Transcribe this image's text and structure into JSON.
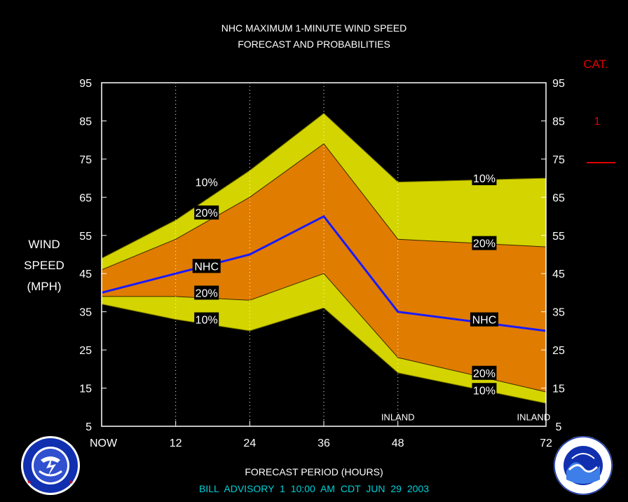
{
  "header": {
    "title_line1": "NHC MAXIMUM 1-MINUTE WIND SPEED",
    "title_line2": "FORECAST AND PROBABILITIES"
  },
  "y_axis_label": [
    "WIND",
    "SPEED",
    "(MPH)"
  ],
  "category": {
    "title": "CAT.",
    "value": "1"
  },
  "footer": {
    "xlabel": "FORECAST PERIOD (HOURS)",
    "advisory": "BILL   ADVISORY  1  10:00  AM  CDT  JUN  29  2003"
  },
  "colors": {
    "background": "#000000",
    "outer_band": "#d4d400",
    "inner_band": "#e07c00",
    "nhc_line": "#1a1aff",
    "category": "#e00000",
    "advisory_text": "#00d0d8"
  },
  "chart_data": {
    "type": "area",
    "x_ticks": [
      0,
      12,
      24,
      36,
      48,
      72
    ],
    "x_tick_labels": [
      "NOW",
      "12",
      "24",
      "36",
      "48",
      "72"
    ],
    "x_range": [
      0,
      72
    ],
    "y_ticks": [
      5,
      15,
      25,
      35,
      45,
      55,
      65,
      75,
      85,
      95
    ],
    "y_range": [
      5,
      95
    ],
    "vertical_gridlines_at": [
      12,
      24,
      36,
      48
    ],
    "x": [
      0,
      12,
      24,
      36,
      48,
      72
    ],
    "series": [
      {
        "name": "10%",
        "role": "upper_outer",
        "values": [
          49,
          59,
          72,
          87,
          69,
          70
        ]
      },
      {
        "name": "20%",
        "role": "upper_inner",
        "values": [
          46,
          54,
          65,
          79,
          54,
          52
        ]
      },
      {
        "name": "NHC",
        "role": "forecast",
        "values": [
          40,
          45,
          50,
          60,
          35,
          30
        ]
      },
      {
        "name": "20%",
        "role": "lower_inner",
        "values": [
          39,
          39,
          38,
          45,
          23,
          14
        ]
      },
      {
        "name": "10%",
        "role": "lower_outer",
        "values": [
          37,
          33,
          30,
          36,
          19,
          11
        ]
      }
    ],
    "band_labels": [
      {
        "text": "10%",
        "x": 17,
        "y": 69
      },
      {
        "text": "20%",
        "x": 17,
        "y": 61
      },
      {
        "text": "NHC",
        "x": 17,
        "y": 47
      },
      {
        "text": "20%",
        "x": 17,
        "y": 40
      },
      {
        "text": "10%",
        "x": 17,
        "y": 33
      },
      {
        "text": "10%",
        "x": 62,
        "y": 70
      },
      {
        "text": "20%",
        "x": 62,
        "y": 53
      },
      {
        "text": "NHC",
        "x": 62,
        "y": 33
      },
      {
        "text": "20%",
        "x": 62,
        "y": 19
      },
      {
        "text": "10%",
        "x": 62,
        "y": 14.5
      }
    ],
    "annotations": [
      {
        "text": "INLAND",
        "x": 48,
        "y": 7.5
      },
      {
        "text": "INLAND",
        "x": 70,
        "y": 7.5
      }
    ]
  }
}
